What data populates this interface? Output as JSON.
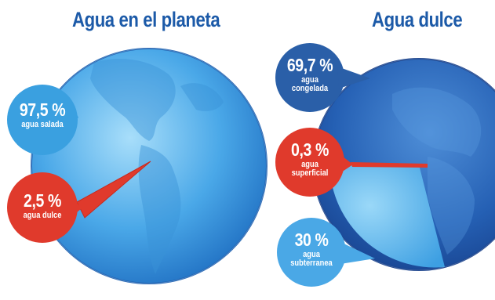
{
  "colors": {
    "title_blue": "#1c5aa8",
    "globe_light": "#8fd0f4",
    "globe_mid": "#3d9fe2",
    "globe_dark": "#1a5fb0",
    "salt_bubble": "#3aa0e0",
    "red": "#e03a2c",
    "frozen_bubble": "#2a5fa8",
    "underground_bubble": "#4aa8e6"
  },
  "panels": {
    "left": {
      "title": "Agua en el planeta",
      "callouts": [
        {
          "value": "97,5 %",
          "label": "agua salada",
          "color": "#3aa0e0"
        },
        {
          "value": "2,5 %",
          "label": "agua dulce",
          "color": "#e03a2c"
        }
      ]
    },
    "right": {
      "title": "Agua dulce",
      "callouts": [
        {
          "value": "69,7 %",
          "label_line1": "agua",
          "label_line2": "congelada",
          "color": "#2a5fa8"
        },
        {
          "value": "0,3 %",
          "label_line1": "agua",
          "label_line2": "superficial",
          "color": "#e03a2c"
        },
        {
          "value": "30 %",
          "label_line1": "agua",
          "label_line2": "subterranea",
          "color": "#4aa8e6"
        }
      ]
    }
  },
  "chart_data": [
    {
      "type": "pie",
      "title": "Agua en el planeta",
      "categories": [
        "agua salada",
        "agua dulce"
      ],
      "values": [
        97.5,
        2.5
      ]
    },
    {
      "type": "pie",
      "title": "Agua dulce",
      "categories": [
        "agua congelada",
        "agua superficial",
        "agua subterranea"
      ],
      "values": [
        69.7,
        0.3,
        30
      ]
    }
  ]
}
